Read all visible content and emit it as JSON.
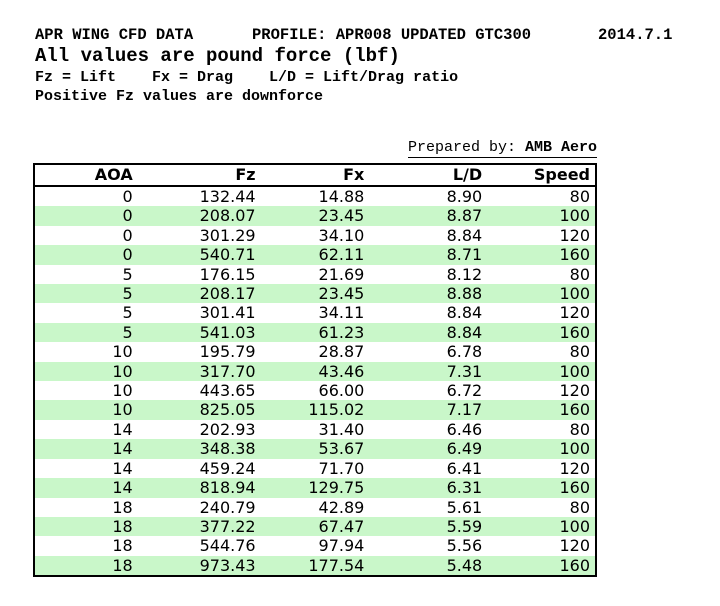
{
  "header": {
    "title": "APR WING CFD DATA",
    "profile": "PROFILE: APR008 UPDATED GTC300",
    "date": "2014.7.1",
    "units_note": "All values are pound force (lbf)",
    "legend_note": "Fz = Lift    Fx = Drag    L/D = Lift/Drag ratio",
    "downforce_note": "Positive Fz values are downforce"
  },
  "prepared_by": {
    "label": "Prepared by: ",
    "value": "AMB Aero"
  },
  "table": {
    "columns": [
      "AOA",
      "Fz",
      "Fx",
      "L/D",
      "Speed"
    ],
    "rows": [
      [
        "0",
        "132.44",
        "14.88",
        "8.90",
        "80"
      ],
      [
        "0",
        "208.07",
        "23.45",
        "8.87",
        "100"
      ],
      [
        "0",
        "301.29",
        "34.10",
        "8.84",
        "120"
      ],
      [
        "0",
        "540.71",
        "62.11",
        "8.71",
        "160"
      ],
      [
        "5",
        "176.15",
        "21.69",
        "8.12",
        "80"
      ],
      [
        "5",
        "208.17",
        "23.45",
        "8.88",
        "100"
      ],
      [
        "5",
        "301.41",
        "34.11",
        "8.84",
        "120"
      ],
      [
        "5",
        "541.03",
        "61.23",
        "8.84",
        "160"
      ],
      [
        "10",
        "195.79",
        "28.87",
        "6.78",
        "80"
      ],
      [
        "10",
        "317.70",
        "43.46",
        "7.31",
        "100"
      ],
      [
        "10",
        "443.65",
        "66.00",
        "6.72",
        "120"
      ],
      [
        "10",
        "825.05",
        "115.02",
        "7.17",
        "160"
      ],
      [
        "14",
        "202.93",
        "31.40",
        "6.46",
        "80"
      ],
      [
        "14",
        "348.38",
        "53.67",
        "6.49",
        "100"
      ],
      [
        "14",
        "459.24",
        "71.70",
        "6.41",
        "120"
      ],
      [
        "14",
        "818.94",
        "129.75",
        "6.31",
        "160"
      ],
      [
        "18",
        "240.79",
        "42.89",
        "5.61",
        "80"
      ],
      [
        "18",
        "377.22",
        "67.47",
        "5.59",
        "100"
      ],
      [
        "18",
        "544.76",
        "97.94",
        "5.56",
        "120"
      ],
      [
        "18",
        "973.43",
        "177.54",
        "5.48",
        "160"
      ]
    ]
  },
  "colors": {
    "row_stripe_green": "#c9f7c9",
    "table_border": "#000000"
  }
}
